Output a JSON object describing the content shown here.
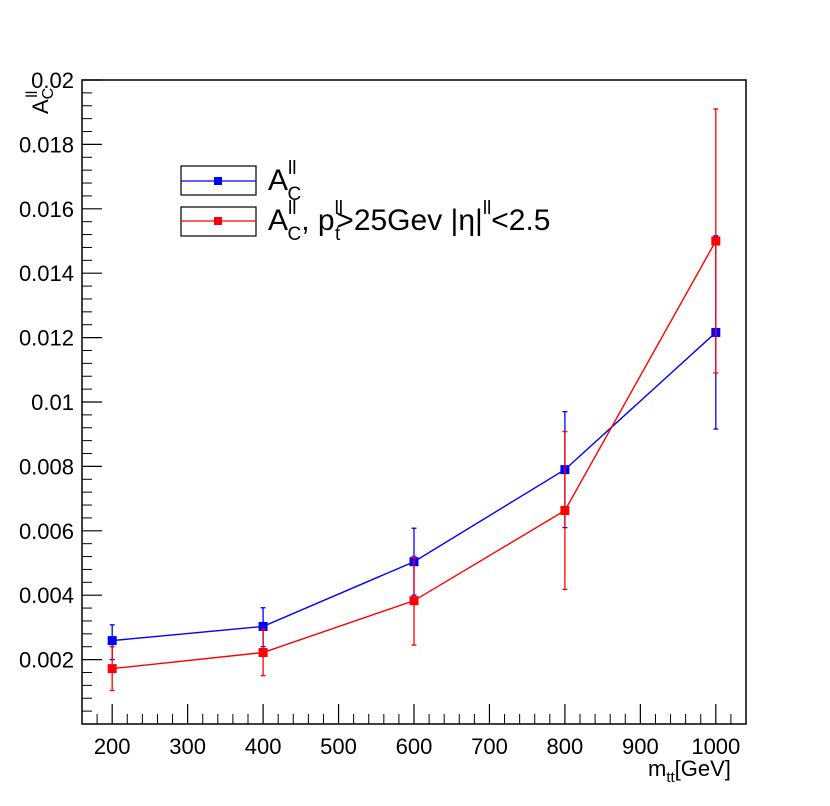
{
  "chart_data": {
    "type": "line",
    "title": "",
    "xlabel": {
      "main": "m",
      "sub": "tt",
      "suffix": "[GeV]"
    },
    "ylabel": {
      "main": "A",
      "sub": "C",
      "sup": "ll"
    },
    "xlim": [
      160,
      1040
    ],
    "ylim": [
      0.0,
      0.02
    ],
    "x_ticks": [
      200,
      300,
      400,
      500,
      600,
      700,
      800,
      900,
      1000
    ],
    "y_ticks": [
      0.002,
      0.004,
      0.006,
      0.008,
      0.01,
      0.012,
      0.014,
      0.016,
      0.018,
      0.02
    ],
    "x_tick_labels": [
      "200",
      "300",
      "400",
      "500",
      "600",
      "700",
      "800",
      "900",
      "1000"
    ],
    "y_tick_labels": [
      "0.002",
      "0.004",
      "0.006",
      "0.008",
      "0.01",
      "0.012",
      "0.014",
      "0.016",
      "0.018",
      "0.02"
    ],
    "grid": false,
    "legend_position": "top-left",
    "series": [
      {
        "name": "A_C^ll",
        "legend": {
          "main": "A",
          "sub": "C",
          "sup": "ll"
        },
        "color": "#0000ff",
        "x": [
          200,
          400,
          600,
          800,
          1000
        ],
        "y": [
          0.00259,
          0.00303,
          0.00504,
          0.0079,
          0.01216
        ],
        "err_low": [
          0.00059,
          0.00063,
          0.00104,
          0.0018,
          0.003
        ],
        "err_high": [
          0.00049,
          0.00058,
          0.00104,
          0.0018,
          0.003
        ]
      },
      {
        "name": "A_C^ll, p_t^ll>25Gev |η|^ll<2.5",
        "legend": {
          "main": "A",
          "sub": "C",
          "sup": "ll",
          "rest": ", p",
          "rest_sub": "t",
          "rest_sup": "ll",
          "rest2": ">25Gev |η|",
          "rest2_sup": "ll",
          "rest3": "<2.5"
        },
        "color": "#ff0000",
        "x": [
          200,
          400,
          600,
          800,
          1000
        ],
        "y": [
          0.00172,
          0.00222,
          0.00383,
          0.00663,
          0.015
        ],
        "err_low": [
          0.00068,
          0.00072,
          0.00138,
          0.00245,
          0.0041
        ],
        "err_high": [
          0.00068,
          0.00072,
          0.00138,
          0.00245,
          0.0041
        ]
      }
    ]
  }
}
